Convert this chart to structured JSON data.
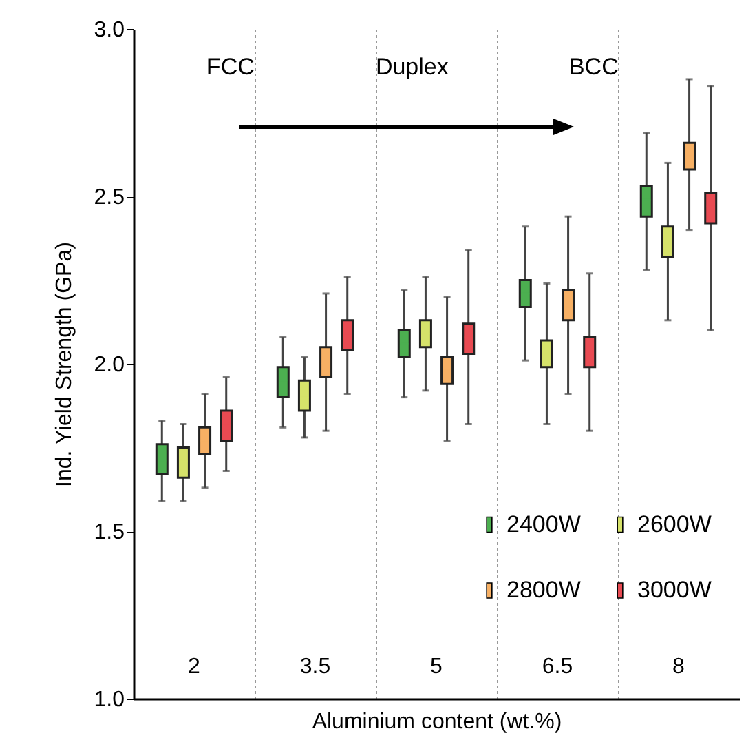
{
  "chart_data": {
    "type": "box",
    "xlabel": "Aluminium content (wt.%)",
    "ylabel": "Ind. Yield Strength (GPa)",
    "categories": [
      "2",
      "3.5",
      "5",
      "6.5",
      "8"
    ],
    "ylim": [
      1,
      3
    ],
    "yticks": [
      {
        "value": 1,
        "label": "1.0"
      },
      {
        "value": 1.5,
        "label": "1.5"
      },
      {
        "value": 2,
        "label": "2.0"
      },
      {
        "value": 2.5,
        "label": "2.5"
      },
      {
        "value": 3,
        "label": "3.0"
      }
    ],
    "grid": "x",
    "legend": "bottom right",
    "annotations": [
      "FCC",
      "Duplex",
      "BCC"
    ],
    "series": [
      {
        "name": "2400W",
        "color": "#4caf50",
        "boxes": [
          {
            "low": 1.59,
            "q1": 1.67,
            "median": 1.71,
            "q3": 1.76,
            "high": 1.83
          },
          {
            "low": 1.81,
            "q1": 1.9,
            "median": 1.95,
            "q3": 1.99,
            "high": 2.08
          },
          {
            "low": 1.9,
            "q1": 2.02,
            "median": 2.06,
            "q3": 2.1,
            "high": 2.22
          },
          {
            "low": 2.01,
            "q1": 2.17,
            "median": 2.21,
            "q3": 2.25,
            "high": 2.41
          },
          {
            "low": 2.28,
            "q1": 2.44,
            "median": 2.49,
            "q3": 2.53,
            "high": 2.69
          }
        ]
      },
      {
        "name": "2600W",
        "color": "#d6e26a",
        "boxes": [
          {
            "low": 1.59,
            "q1": 1.66,
            "median": 1.71,
            "q3": 1.75,
            "high": 1.82
          },
          {
            "low": 1.78,
            "q1": 1.86,
            "median": 1.9,
            "q3": 1.95,
            "high": 2.02
          },
          {
            "low": 1.92,
            "q1": 2.05,
            "median": 2.09,
            "q3": 2.13,
            "high": 2.26
          },
          {
            "low": 1.82,
            "q1": 1.99,
            "median": 2.03,
            "q3": 2.07,
            "high": 2.24
          },
          {
            "low": 2.13,
            "q1": 2.32,
            "median": 2.36,
            "q3": 2.41,
            "high": 2.6
          }
        ]
      },
      {
        "name": "2800W",
        "color": "#f7b064",
        "boxes": [
          {
            "low": 1.63,
            "q1": 1.73,
            "median": 1.77,
            "q3": 1.81,
            "high": 1.91
          },
          {
            "low": 1.8,
            "q1": 1.96,
            "median": 2.0,
            "q3": 2.05,
            "high": 2.21
          },
          {
            "low": 1.77,
            "q1": 1.94,
            "median": 1.98,
            "q3": 2.02,
            "high": 2.2
          },
          {
            "low": 1.91,
            "q1": 2.13,
            "median": 2.17,
            "q3": 2.22,
            "high": 2.44
          },
          {
            "low": 2.4,
            "q1": 2.58,
            "median": 2.62,
            "q3": 2.66,
            "high": 2.85
          }
        ]
      },
      {
        "name": "3000W",
        "color": "#e84a52",
        "boxes": [
          {
            "low": 1.68,
            "q1": 1.77,
            "median": 1.82,
            "q3": 1.86,
            "high": 1.96
          },
          {
            "low": 1.91,
            "q1": 2.04,
            "median": 2.09,
            "q3": 2.13,
            "high": 2.26
          },
          {
            "low": 1.82,
            "q1": 2.03,
            "median": 2.08,
            "q3": 2.12,
            "high": 2.34
          },
          {
            "low": 1.8,
            "q1": 1.99,
            "median": 2.03,
            "q3": 2.08,
            "high": 2.27
          },
          {
            "low": 2.1,
            "q1": 2.42,
            "median": 2.47,
            "q3": 2.51,
            "high": 2.83
          }
        ]
      }
    ]
  }
}
